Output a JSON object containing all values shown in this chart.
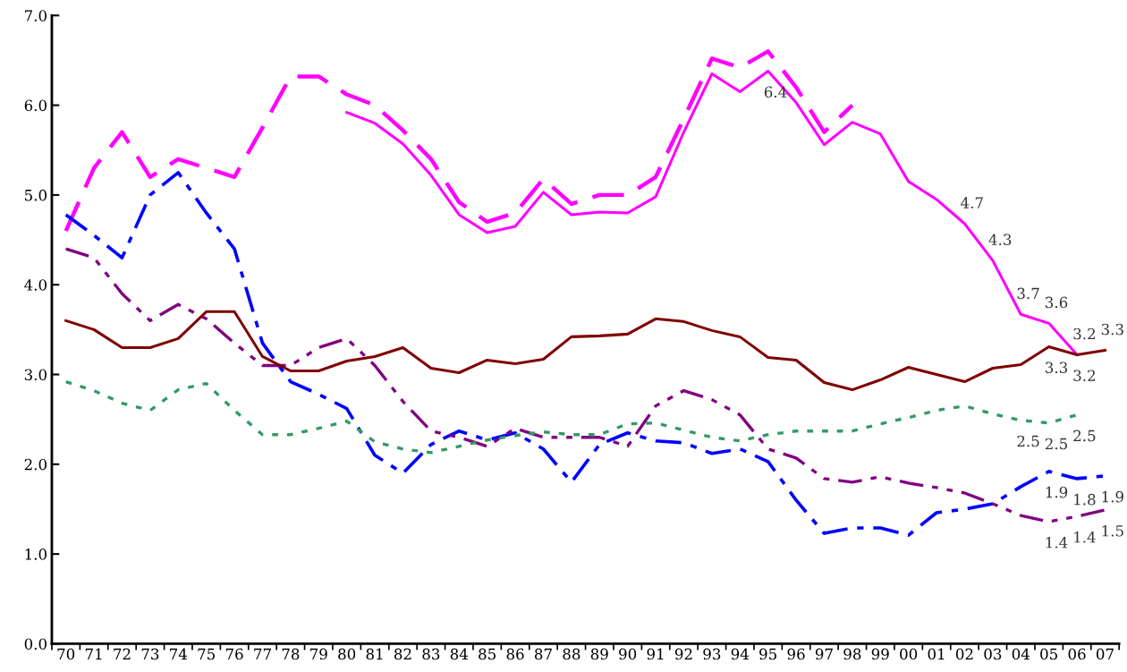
{
  "chart_data": {
    "type": "line",
    "categories": [
      "70",
      "71",
      "72",
      "73",
      "74",
      "75",
      "76",
      "77",
      "78",
      "79",
      "80",
      "81",
      "82",
      "83",
      "84",
      "85",
      "86",
      "87",
      "88",
      "89",
      "90",
      "91",
      "92",
      "93",
      "94",
      "95",
      "96",
      "97",
      "98",
      "99",
      "00",
      "01",
      "02",
      "03",
      "04",
      "05",
      "06",
      "07"
    ],
    "ylim": [
      0,
      7
    ],
    "yticks": [
      {
        "value": 0,
        "label": "0.0"
      },
      {
        "value": 1,
        "label": "1.0"
      },
      {
        "value": 2,
        "label": "2.0"
      },
      {
        "value": 3,
        "label": "3.0"
      },
      {
        "value": 4,
        "label": "4.0"
      },
      {
        "value": 5,
        "label": "5.0"
      },
      {
        "value": 6,
        "label": "6.0"
      },
      {
        "value": 7,
        "label": "7.0"
      }
    ],
    "grid": false,
    "marker": "none",
    "series": [
      {
        "color": "#ff00ff",
        "line_style": "dashed",
        "values": [
          4.6,
          5.3,
          5.7,
          5.2,
          5.4,
          5.3,
          5.2,
          5.75,
          6.32,
          6.32,
          6.12,
          6.0,
          5.72,
          5.4,
          4.92,
          4.7,
          4.8,
          5.18,
          4.9,
          5.0,
          5.0,
          5.2,
          5.85,
          6.52,
          6.42,
          6.6,
          6.2,
          5.7,
          6.0,
          null,
          null,
          null,
          null,
          null,
          null,
          null,
          null,
          null
        ]
      },
      {
        "color": "#ff00ff",
        "line_style": "solid",
        "values": [
          null,
          null,
          null,
          null,
          null,
          null,
          null,
          null,
          null,
          null,
          5.92,
          5.8,
          5.57,
          5.22,
          4.78,
          4.58,
          4.65,
          5.03,
          4.78,
          4.81,
          4.8,
          4.98,
          5.7,
          6.35,
          6.15,
          6.38,
          6.03,
          5.56,
          5.81,
          5.68,
          5.15,
          4.95,
          4.68,
          4.27,
          3.67,
          3.57,
          3.22,
          null
        ],
        "value_labels": [
          null,
          null,
          null,
          null,
          null,
          null,
          null,
          null,
          null,
          null,
          null,
          null,
          null,
          null,
          null,
          null,
          null,
          null,
          null,
          null,
          null,
          null,
          null,
          null,
          null,
          "6.4",
          null,
          null,
          null,
          null,
          null,
          null,
          "4.7",
          "4.3",
          "3.7",
          "3.6",
          "3.2",
          null
        ]
      },
      {
        "color": "#0000ff",
        "line_style": "dashdot",
        "values": [
          4.78,
          4.55,
          4.3,
          5.0,
          5.25,
          4.8,
          4.4,
          3.35,
          2.92,
          2.78,
          2.62,
          2.1,
          1.9,
          2.22,
          2.37,
          2.27,
          2.35,
          2.17,
          1.8,
          2.22,
          2.35,
          2.26,
          2.24,
          2.12,
          2.17,
          2.03,
          1.6,
          1.23,
          1.29,
          1.29,
          1.21,
          1.46,
          1.5,
          1.56,
          1.75,
          1.92,
          1.84,
          1.87
        ],
        "value_labels": [
          null,
          null,
          null,
          null,
          null,
          null,
          null,
          null,
          null,
          null,
          null,
          null,
          null,
          null,
          null,
          null,
          null,
          null,
          null,
          null,
          null,
          null,
          null,
          null,
          null,
          null,
          null,
          null,
          null,
          null,
          null,
          null,
          null,
          null,
          null,
          "1.9",
          "1.8",
          "1.9"
        ]
      },
      {
        "color": "#800080",
        "line_style": "dashdotdot",
        "values": [
          4.4,
          4.3,
          3.9,
          3.6,
          3.78,
          3.62,
          3.35,
          3.1,
          3.1,
          3.3,
          3.4,
          3.1,
          2.7,
          2.37,
          2.3,
          2.2,
          2.4,
          2.3,
          2.3,
          2.3,
          2.2,
          2.65,
          2.82,
          2.72,
          2.55,
          2.17,
          2.07,
          1.84,
          1.8,
          1.86,
          1.79,
          1.74,
          1.68,
          1.56,
          1.43,
          1.36,
          1.42,
          1.49
        ],
        "value_labels": [
          null,
          null,
          null,
          null,
          null,
          null,
          null,
          null,
          null,
          null,
          null,
          null,
          null,
          null,
          null,
          null,
          null,
          null,
          null,
          null,
          null,
          null,
          null,
          null,
          null,
          null,
          null,
          null,
          null,
          null,
          null,
          null,
          null,
          null,
          null,
          "1.4",
          "1.4",
          "1.5"
        ]
      },
      {
        "color": "#800000",
        "line_style": "solid",
        "values": [
          3.6,
          3.5,
          3.3,
          3.3,
          3.4,
          3.7,
          3.7,
          3.2,
          3.04,
          3.04,
          3.15,
          3.2,
          3.3,
          3.07,
          3.02,
          3.16,
          3.12,
          3.17,
          3.42,
          3.43,
          3.45,
          3.62,
          3.59,
          3.49,
          3.42,
          3.19,
          3.16,
          2.91,
          2.83,
          2.94,
          3.08,
          3.0,
          2.92,
          3.07,
          3.11,
          3.31,
          3.22,
          3.27
        ],
        "value_labels": [
          null,
          null,
          null,
          null,
          null,
          null,
          null,
          null,
          null,
          null,
          null,
          null,
          null,
          null,
          null,
          null,
          null,
          null,
          null,
          null,
          null,
          null,
          null,
          null,
          null,
          null,
          null,
          null,
          null,
          null,
          null,
          null,
          null,
          null,
          null,
          "3.3",
          "3.2",
          "3.3"
        ]
      },
      {
        "color": "#339966",
        "line_style": "dotted",
        "values": [
          2.92,
          2.82,
          2.68,
          2.6,
          2.83,
          2.9,
          2.6,
          2.33,
          2.33,
          2.4,
          2.48,
          2.25,
          2.17,
          2.13,
          2.2,
          2.27,
          2.32,
          2.36,
          2.33,
          2.33,
          2.45,
          2.46,
          2.38,
          2.3,
          2.26,
          2.33,
          2.37,
          2.37,
          2.37,
          2.45,
          2.52,
          2.6,
          2.65,
          2.56,
          2.49,
          2.46,
          2.55,
          null
        ],
        "value_labels": [
          null,
          null,
          null,
          null,
          null,
          null,
          null,
          null,
          null,
          null,
          null,
          null,
          null,
          null,
          null,
          null,
          null,
          null,
          null,
          null,
          null,
          null,
          null,
          null,
          null,
          null,
          null,
          null,
          null,
          null,
          null,
          null,
          null,
          null,
          "2.5",
          "2.5",
          "2.5",
          null
        ]
      }
    ]
  }
}
